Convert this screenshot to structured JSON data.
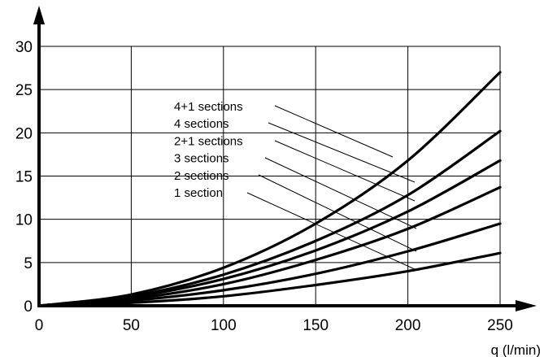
{
  "chart_data": {
    "type": "line",
    "xlabel": "q (l/min)",
    "ylabel": "",
    "xlim": [
      0,
      250
    ],
    "ylim": [
      0,
      30
    ],
    "x_ticks": [
      0,
      50,
      100,
      150,
      200,
      250
    ],
    "y_ticks": [
      0,
      5,
      10,
      15,
      20,
      25,
      30
    ],
    "x": [
      0,
      50,
      100,
      150,
      200,
      250
    ],
    "series": [
      {
        "name": "4+1 sections",
        "values": [
          0,
          1.3,
          4.4,
          9.5,
          16.8,
          27.0
        ]
      },
      {
        "name": "4 sections",
        "values": [
          0,
          1.1,
          3.6,
          7.5,
          12.8,
          20.2
        ]
      },
      {
        "name": "2+1 sections",
        "values": [
          0,
          1.0,
          3.1,
          6.4,
          10.9,
          16.8
        ]
      },
      {
        "name": "3 sections",
        "values": [
          0,
          0.8,
          2.5,
          5.3,
          8.9,
          13.7
        ]
      },
      {
        "name": "2 sections",
        "values": [
          0,
          0.6,
          1.8,
          3.7,
          6.3,
          9.5
        ]
      },
      {
        "name": "1 section",
        "values": [
          0,
          0.35,
          1.1,
          2.4,
          4.0,
          6.1
        ]
      }
    ],
    "grid": true,
    "legend": "labels with leader lines"
  }
}
